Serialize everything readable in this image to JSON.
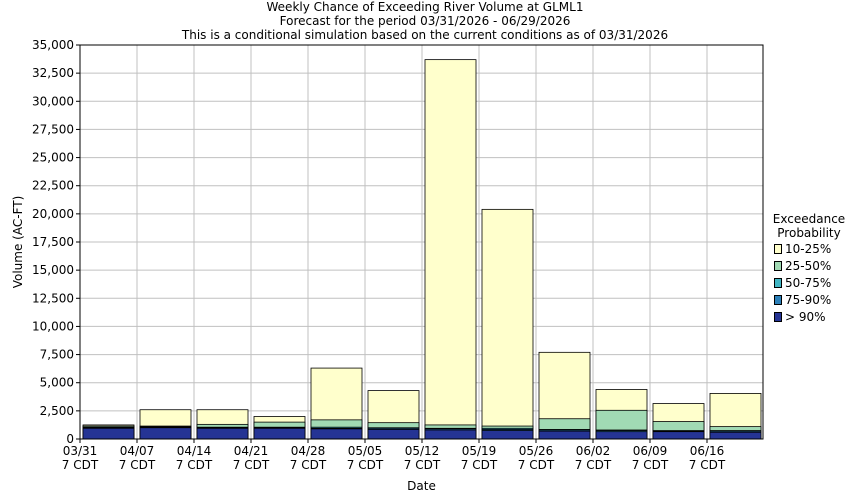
{
  "chart_data": {
    "type": "bar",
    "title": "Weekly Chance of Exceeding River Volume at GLML1",
    "subtitle": "Forecast for the period 03/31/2026 - 06/29/2026",
    "subtitle2": "This is a conditional simulation based on the current conditions as of 03/31/2026",
    "xlabel": "Date",
    "ylabel": "Volume (AC-FT)",
    "ylim": [
      0,
      35000
    ],
    "y_ticks": [
      "0",
      "2,500",
      "5,000",
      "7,500",
      "10,000",
      "12,500",
      "15,000",
      "17,500",
      "20,000",
      "22,500",
      "25,000",
      "27,500",
      "30,000",
      "32,500",
      "35,000"
    ],
    "y_tick_values": [
      0,
      2500,
      5000,
      7500,
      10000,
      12500,
      15000,
      17500,
      20000,
      22500,
      25000,
      27500,
      30000,
      32500,
      35000
    ],
    "x_ticks": [
      {
        "line1": "03/31",
        "line2": "7 CDT"
      },
      {
        "line1": "04/07",
        "line2": "7 CDT"
      },
      {
        "line1": "04/14",
        "line2": "7 CDT"
      },
      {
        "line1": "04/21",
        "line2": "7 CDT"
      },
      {
        "line1": "04/28",
        "line2": "7 CDT"
      },
      {
        "line1": "05/05",
        "line2": "7 CDT"
      },
      {
        "line1": "05/12",
        "line2": "7 CDT"
      },
      {
        "line1": "05/19",
        "line2": "7 CDT"
      },
      {
        "line1": "05/26",
        "line2": "7 CDT"
      },
      {
        "line1": "06/02",
        "line2": "7 CDT"
      },
      {
        "line1": "06/09",
        "line2": "7 CDT"
      },
      {
        "line1": "06/16",
        "line2": "7 CDT"
      }
    ],
    "legend_title_line1": "Exceedance",
    "legend_title_line2": "Probability",
    "legend_position": "right",
    "grid": true,
    "series": [
      {
        "name": "10-25%",
        "color": "#ffffcc",
        "values": [
          1250,
          2600,
          2600,
          2000,
          6300,
          4300,
          33700,
          20400,
          7700,
          4400,
          3150,
          4050
        ]
      },
      {
        "name": "25-50%",
        "color": "#a1dab4",
        "values": [
          1150,
          1150,
          1300,
          1500,
          1700,
          1450,
          1250,
          1150,
          1800,
          2550,
          1550,
          1100
        ]
      },
      {
        "name": "50-75%",
        "color": "#41b6c4",
        "values": [
          1050,
          1100,
          1050,
          1050,
          1050,
          1000,
          950,
          950,
          850,
          800,
          750,
          750
        ]
      },
      {
        "name": "75-90%",
        "color": "#2c7fb8",
        "values": [
          1000,
          1050,
          1000,
          1000,
          950,
          950,
          900,
          850,
          800,
          750,
          700,
          700
        ]
      },
      {
        "name": "> 90%",
        "color": "#253494",
        "values": [
          950,
          1000,
          950,
          950,
          900,
          850,
          800,
          750,
          700,
          650,
          650,
          600
        ]
      }
    ]
  }
}
